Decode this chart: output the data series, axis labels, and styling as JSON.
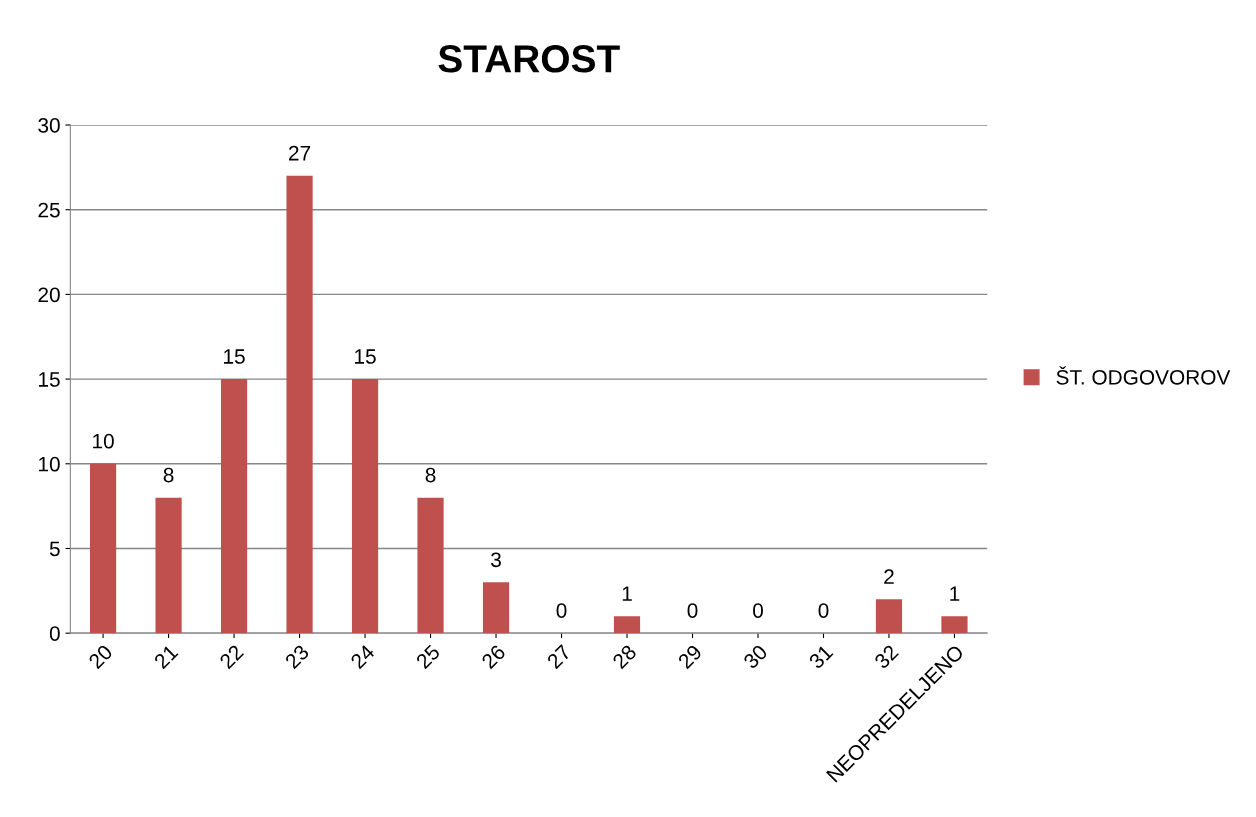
{
  "chart_data": {
    "type": "bar",
    "title": "STAROST",
    "categories": [
      "20",
      "21",
      "22",
      "23",
      "24",
      "25",
      "26",
      "27",
      "28",
      "29",
      "30",
      "31",
      "32",
      "NEOPREDELJENO"
    ],
    "series": [
      {
        "name": "ŠT. ODGOVOROV",
        "color": "#c0504d",
        "values": [
          10,
          8,
          15,
          27,
          15,
          8,
          3,
          0,
          1,
          0,
          0,
          0,
          2,
          1
        ]
      }
    ],
    "ylim": [
      0,
      30
    ],
    "yticks": [
      0,
      5,
      10,
      15,
      20,
      25,
      30
    ],
    "grid": "y",
    "legend": "right",
    "data_labels": true
  }
}
